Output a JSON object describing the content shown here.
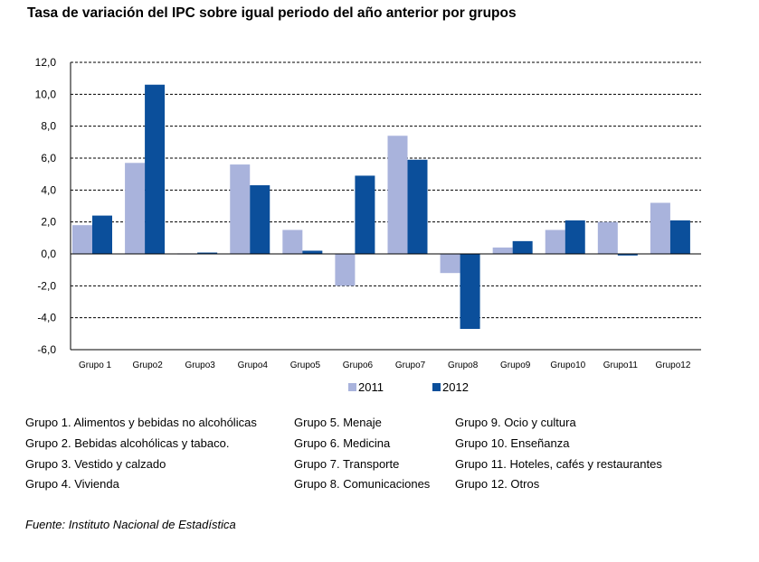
{
  "chart_data": {
    "type": "bar",
    "title": "Tasa de variación del IPC sobre igual periodo del año anterior por grupos",
    "categories": [
      "Grupo 1",
      "Grupo2",
      "Grupo3",
      "Grupo4",
      "Grupo5",
      "Grupo6",
      "Grupo7",
      "Grupo8",
      "Grupo9",
      "Grupo10",
      "Grupo11",
      "Grupo12"
    ],
    "series": [
      {
        "name": "2011",
        "color": "#a9b3dc",
        "values": [
          1.8,
          5.7,
          -0.05,
          5.6,
          1.5,
          -2.0,
          7.4,
          -1.2,
          0.4,
          1.5,
          2.0,
          3.2
        ]
      },
      {
        "name": "2012",
        "color": "#0b4f9b",
        "values": [
          2.4,
          10.6,
          0.05,
          4.3,
          0.2,
          4.9,
          5.9,
          -4.7,
          0.8,
          2.1,
          -0.1,
          2.1
        ]
      }
    ],
    "y_ticks": [
      "12,0",
      "10,0",
      "8,0",
      "6,0",
      "4,0",
      "2,0",
      "0,0",
      "-2,0",
      "-4,0",
      "-6,0"
    ],
    "ylim": [
      -6,
      12
    ],
    "grid": true,
    "legend_position": "bottom"
  },
  "group_legend": [
    [
      "Grupo 1. Alimentos y bebidas no alcohólicas",
      "Grupo 2. Bebidas alcohólicas y  tabaco.",
      "Grupo 3. Vestido y calzado",
      "Grupo 4. Vivienda"
    ],
    [
      "Grupo 5. Menaje",
      "Grupo 6. Medicina",
      "Grupo 7. Transporte",
      "Grupo 8. Comunicaciones"
    ],
    [
      "Grupo 9. Ocio y cultura",
      "Grupo 10. Enseñanza",
      "Grupo 11. Hoteles, cafés y restaurantes",
      "Grupo 12. Otros"
    ]
  ],
  "source": "Fuente: Instituto Nacional de Estadística"
}
